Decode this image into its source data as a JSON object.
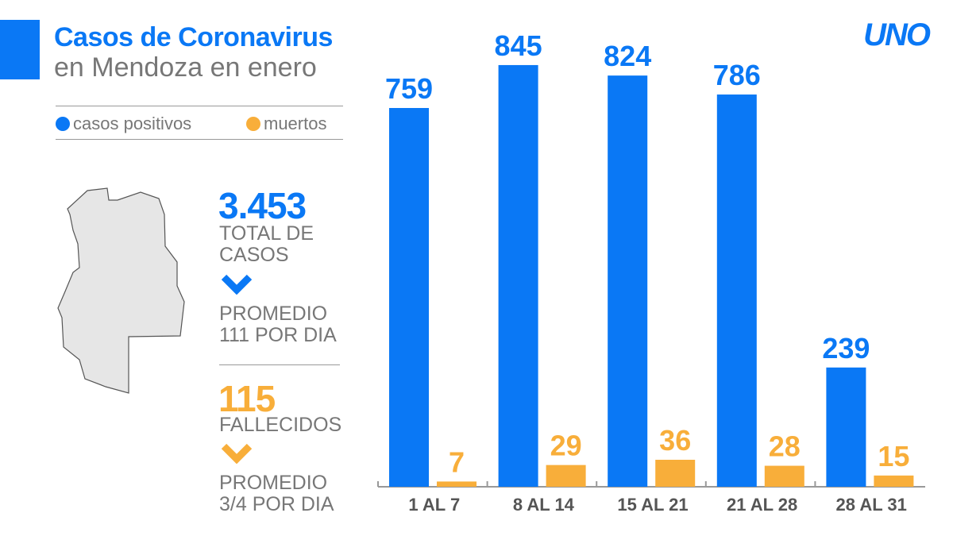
{
  "title": {
    "line1": "Casos de Coronavirus",
    "line2": "en Mendoza en enero"
  },
  "logo": "UNO",
  "colors": {
    "blue": "#0a78f5",
    "orange": "#f8ae3a"
  },
  "summary": {
    "total": "3.453",
    "total_label1": "TOTAL DE",
    "total_label2": "CASOS",
    "avg_cases1": "PROMEDIO",
    "avg_cases2": "111 POR DIA",
    "deaths": "115",
    "deaths_label": "FALLECIDOS",
    "avg_deaths1": "PROMEDIO",
    "avg_deaths2": "3/4 POR DIA"
  },
  "chart_data": {
    "type": "bar",
    "categories": [
      "1 AL 7",
      "8 AL 14",
      "15 AL 21",
      "21 AL 28",
      "28 AL 31"
    ],
    "series": [
      {
        "name": "casos positivos",
        "values": [
          759,
          845,
          824,
          786,
          239
        ],
        "color": "#0a78f5"
      },
      {
        "name": "muertos",
        "values": [
          7,
          29,
          36,
          28,
          15
        ],
        "color": "#f8ae3a"
      }
    ],
    "legend": "top-left",
    "grid": false
  }
}
